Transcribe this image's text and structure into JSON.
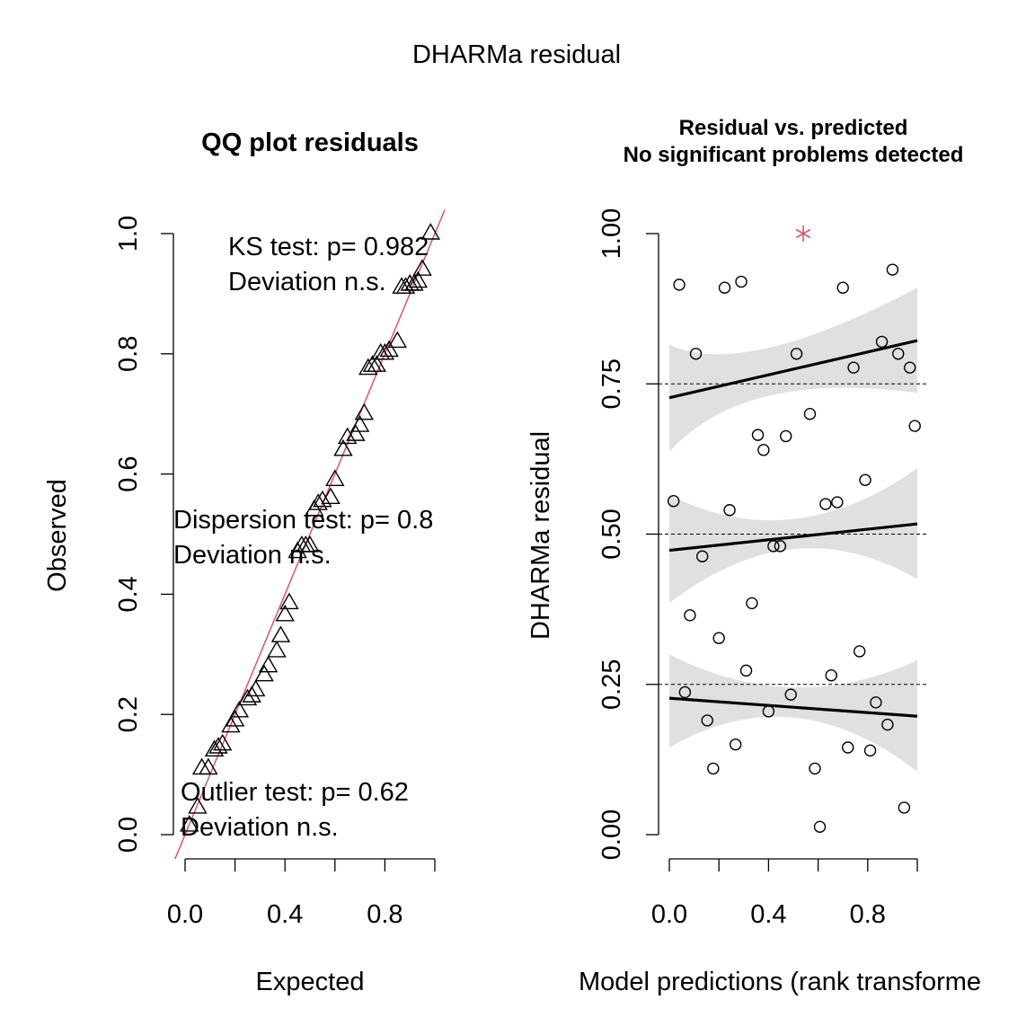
{
  "page_title": "DHARMa residual",
  "chart_data": [
    {
      "type": "scatter",
      "title": "QQ plot residuals",
      "xlabel": "Expected",
      "ylabel": "Observed",
      "xlim": [
        0,
        1
      ],
      "ylim": [
        0,
        1
      ],
      "xticks": [
        "0.0",
        "0.4",
        "0.8"
      ],
      "xtick_values": [
        0,
        0.2,
        0.4,
        0.6,
        0.8,
        1.0
      ],
      "xtick_label_values": [
        0,
        0.4,
        0.8
      ],
      "yticks": [
        "0.0",
        "0.2",
        "0.4",
        "0.6",
        "0.8",
        "1.0"
      ],
      "ytick_values": [
        0,
        0.2,
        0.4,
        0.6,
        0.8,
        1.0
      ],
      "marker": "triangle",
      "reference_line": {
        "color": "#DF536B",
        "intercept": 0,
        "slope": 1
      },
      "annotations": {
        "ks": [
          "KS test: p= 0.982",
          "Deviation  n.s."
        ],
        "dispersion": [
          "Dispersion test: p= 0.8",
          "Deviation  n.s."
        ],
        "outlier": [
          "Outlier test: p= 0.62",
          "Deviation  n.s."
        ]
      },
      "points": [
        {
          "x": 0.017,
          "y": 0.015
        },
        {
          "x": 0.05,
          "y": 0.045
        },
        {
          "x": 0.067,
          "y": 0.11
        },
        {
          "x": 0.093,
          "y": 0.11
        },
        {
          "x": 0.117,
          "y": 0.14
        },
        {
          "x": 0.133,
          "y": 0.145
        },
        {
          "x": 0.15,
          "y": 0.15
        },
        {
          "x": 0.183,
          "y": 0.18
        },
        {
          "x": 0.2,
          "y": 0.19
        },
        {
          "x": 0.217,
          "y": 0.205
        },
        {
          "x": 0.25,
          "y": 0.225
        },
        {
          "x": 0.267,
          "y": 0.23
        },
        {
          "x": 0.283,
          "y": 0.24
        },
        {
          "x": 0.317,
          "y": 0.265
        },
        {
          "x": 0.333,
          "y": 0.28
        },
        {
          "x": 0.367,
          "y": 0.305
        },
        {
          "x": 0.383,
          "y": 0.33
        },
        {
          "x": 0.4,
          "y": 0.365
        },
        {
          "x": 0.417,
          "y": 0.385
        },
        {
          "x": 0.45,
          "y": 0.47
        },
        {
          "x": 0.467,
          "y": 0.48
        },
        {
          "x": 0.483,
          "y": 0.48
        },
        {
          "x": 0.5,
          "y": 0.48
        },
        {
          "x": 0.517,
          "y": 0.54
        },
        {
          "x": 0.533,
          "y": 0.55
        },
        {
          "x": 0.55,
          "y": 0.555
        },
        {
          "x": 0.583,
          "y": 0.56
        },
        {
          "x": 0.6,
          "y": 0.59
        },
        {
          "x": 0.633,
          "y": 0.64
        },
        {
          "x": 0.65,
          "y": 0.66
        },
        {
          "x": 0.683,
          "y": 0.665
        },
        {
          "x": 0.7,
          "y": 0.68
        },
        {
          "x": 0.717,
          "y": 0.7
        },
        {
          "x": 0.733,
          "y": 0.775
        },
        {
          "x": 0.75,
          "y": 0.78
        },
        {
          "x": 0.767,
          "y": 0.78
        },
        {
          "x": 0.783,
          "y": 0.8
        },
        {
          "x": 0.8,
          "y": 0.8
        },
        {
          "x": 0.817,
          "y": 0.805
        },
        {
          "x": 0.85,
          "y": 0.82
        },
        {
          "x": 0.867,
          "y": 0.91
        },
        {
          "x": 0.883,
          "y": 0.91
        },
        {
          "x": 0.9,
          "y": 0.915
        },
        {
          "x": 0.917,
          "y": 0.915
        },
        {
          "x": 0.933,
          "y": 0.92
        },
        {
          "x": 0.95,
          "y": 0.94
        },
        {
          "x": 0.983,
          "y": 1.0
        }
      ]
    },
    {
      "type": "scatter",
      "title": [
        "Residual vs. predicted",
        "No significant problems detected"
      ],
      "xlabel": "Model predictions (rank transforme",
      "ylabel": "DHARMa residual",
      "xlim": [
        0,
        1
      ],
      "ylim": [
        0,
        1
      ],
      "xticks": [
        "0.0",
        "0.4",
        "0.8"
      ],
      "xtick_values": [
        0,
        0.2,
        0.4,
        0.6,
        0.8,
        1.0
      ],
      "xtick_label_values": [
        0,
        0.4,
        0.8
      ],
      "yticks": [
        "0.00",
        "0.25",
        "0.50",
        "0.75",
        "1.00"
      ],
      "ytick_values": [
        0,
        0.25,
        0.5,
        0.75,
        1.0
      ],
      "marker": "circle",
      "reference_lines": [
        0.25,
        0.5,
        0.75
      ],
      "band_color": "#E0E0E0",
      "outlier_color": "#DF536B",
      "outliers": [
        {
          "x": 0.54,
          "y": 1.0
        }
      ],
      "quantile_fits": [
        {
          "quantile": 0.25,
          "line": [
            [
              0,
              0.227
            ],
            [
              1,
              0.197
            ]
          ],
          "ci_upper": [
            [
              0,
              0.3
            ],
            [
              0.5,
              0.245
            ],
            [
              1,
              0.29
            ]
          ],
          "ci_lower": [
            [
              0,
              0.145
            ],
            [
              0.5,
              0.195
            ],
            [
              1,
              0.105
            ]
          ]
        },
        {
          "quantile": 0.5,
          "line": [
            [
              0,
              0.473
            ],
            [
              1,
              0.517
            ]
          ],
          "ci_upper": [
            [
              0,
              0.565
            ],
            [
              0.5,
              0.525
            ],
            [
              1,
              0.61
            ]
          ],
          "ci_lower": [
            [
              0,
              0.385
            ],
            [
              0.5,
              0.475
            ],
            [
              1,
              0.425
            ]
          ]
        },
        {
          "quantile": 0.75,
          "line": [
            [
              0,
              0.727
            ],
            [
              1,
              0.822
            ]
          ],
          "ci_upper": [
            [
              0,
              0.815
            ],
            [
              0.4,
              0.81
            ],
            [
              1,
              0.91
            ]
          ],
          "ci_lower": [
            [
              0,
              0.637
            ],
            [
              0.4,
              0.73
            ],
            [
              1,
              0.735
            ]
          ]
        }
      ],
      "points": [
        {
          "x": 0.017,
          "y": 0.555
        },
        {
          "x": 0.04,
          "y": 0.915
        },
        {
          "x": 0.063,
          "y": 0.237
        },
        {
          "x": 0.083,
          "y": 0.365
        },
        {
          "x": 0.107,
          "y": 0.8
        },
        {
          "x": 0.133,
          "y": 0.463
        },
        {
          "x": 0.153,
          "y": 0.19
        },
        {
          "x": 0.177,
          "y": 0.11
        },
        {
          "x": 0.2,
          "y": 0.327
        },
        {
          "x": 0.223,
          "y": 0.91
        },
        {
          "x": 0.243,
          "y": 0.54
        },
        {
          "x": 0.267,
          "y": 0.15
        },
        {
          "x": 0.29,
          "y": 0.92
        },
        {
          "x": 0.31,
          "y": 0.273
        },
        {
          "x": 0.333,
          "y": 0.385
        },
        {
          "x": 0.357,
          "y": 0.665
        },
        {
          "x": 0.38,
          "y": 0.64
        },
        {
          "x": 0.4,
          "y": 0.205
        },
        {
          "x": 0.42,
          "y": 0.48
        },
        {
          "x": 0.447,
          "y": 0.48
        },
        {
          "x": 0.47,
          "y": 0.663
        },
        {
          "x": 0.49,
          "y": 0.233
        },
        {
          "x": 0.513,
          "y": 0.8
        },
        {
          "x": 0.567,
          "y": 0.7
        },
        {
          "x": 0.587,
          "y": 0.11
        },
        {
          "x": 0.607,
          "y": 0.013
        },
        {
          "x": 0.63,
          "y": 0.55
        },
        {
          "x": 0.653,
          "y": 0.265
        },
        {
          "x": 0.677,
          "y": 0.553
        },
        {
          "x": 0.7,
          "y": 0.91
        },
        {
          "x": 0.72,
          "y": 0.145
        },
        {
          "x": 0.743,
          "y": 0.777
        },
        {
          "x": 0.767,
          "y": 0.305
        },
        {
          "x": 0.79,
          "y": 0.59
        },
        {
          "x": 0.81,
          "y": 0.14
        },
        {
          "x": 0.833,
          "y": 0.22
        },
        {
          "x": 0.857,
          "y": 0.82
        },
        {
          "x": 0.88,
          "y": 0.183
        },
        {
          "x": 0.9,
          "y": 0.94
        },
        {
          "x": 0.923,
          "y": 0.8
        },
        {
          "x": 0.947,
          "y": 0.045
        },
        {
          "x": 0.97,
          "y": 0.777
        },
        {
          "x": 0.99,
          "y": 0.68
        }
      ]
    }
  ]
}
